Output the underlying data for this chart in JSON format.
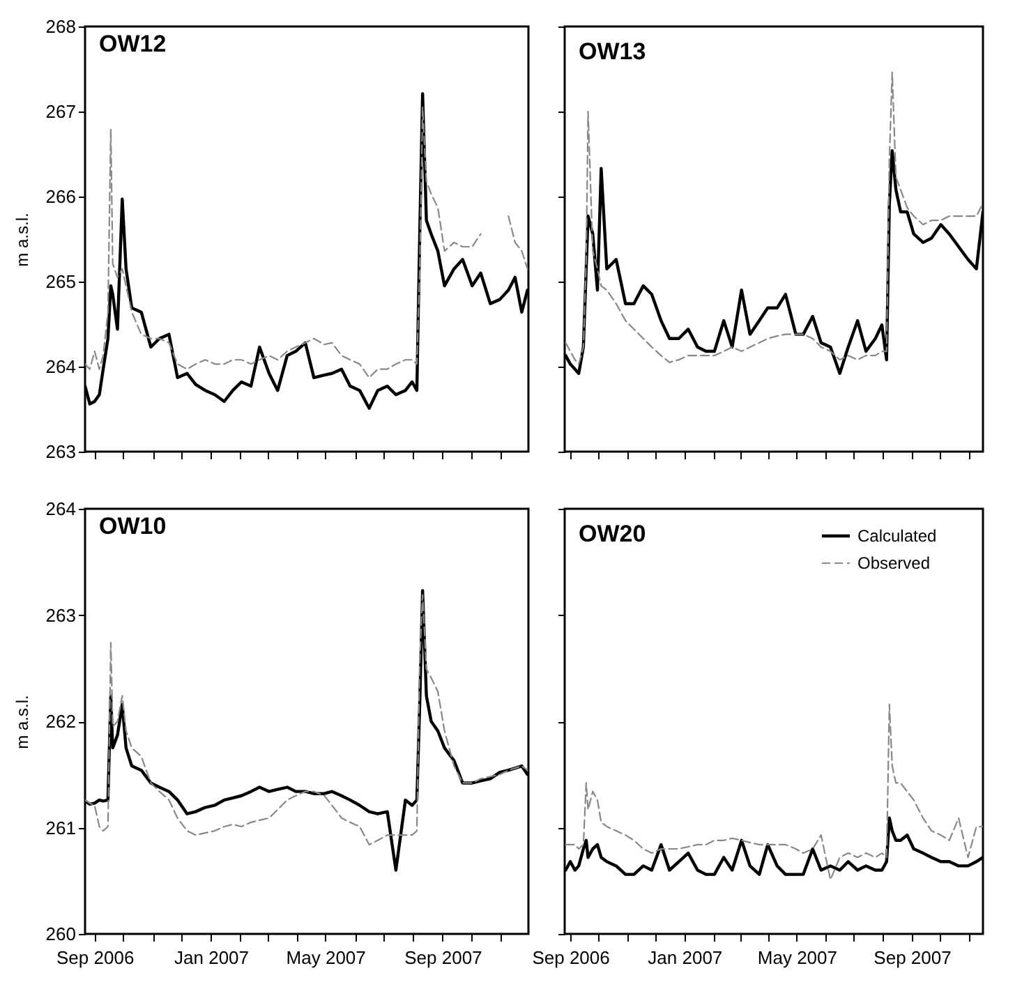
{
  "chart_data": [
    {
      "type": "line",
      "title": "OW12",
      "ylabel": "m a.s.l.",
      "tick_labels": "y",
      "legend": false,
      "xlim": [
        "2006-08-22",
        "2007-11-30"
      ],
      "ylim": [
        263,
        268
      ],
      "yticks": [
        263,
        264,
        265,
        266,
        267,
        268
      ],
      "xticks": [
        {
          "value": "2006-09-01",
          "label": null
        },
        {
          "value": "2006-10-01",
          "label": null
        },
        {
          "value": "2006-11-01",
          "label": null
        },
        {
          "value": "2006-12-01",
          "label": null
        },
        {
          "value": "2007-01-01",
          "label": null
        },
        {
          "value": "2007-02-01",
          "label": null
        },
        {
          "value": "2007-03-01",
          "label": null
        },
        {
          "value": "2007-04-01",
          "label": null
        },
        {
          "value": "2007-05-01",
          "label": null
        },
        {
          "value": "2007-06-01",
          "label": null
        },
        {
          "value": "2007-07-01",
          "label": null
        },
        {
          "value": "2007-08-01",
          "label": null
        },
        {
          "value": "2007-09-01",
          "label": null
        },
        {
          "value": "2007-10-01",
          "label": null
        },
        {
          "value": "2007-11-01",
          "label": null
        }
      ],
      "x": [
        "2006-08-22",
        "2006-08-27",
        "2006-09-01",
        "2006-09-06",
        "2006-09-10",
        "2006-09-15",
        "2006-09-18",
        "2006-09-20",
        "2006-09-25",
        "2006-09-30",
        "2006-10-04",
        "2006-10-10",
        "2006-10-20",
        "2006-10-30",
        "2006-11-08",
        "2006-11-18",
        "2006-11-27",
        "2006-12-07",
        "2006-12-16",
        "2006-12-26",
        "2007-01-05",
        "2007-01-15",
        "2007-01-24",
        "2007-02-02",
        "2007-02-12",
        "2007-02-21",
        "2007-03-03",
        "2007-03-12",
        "2007-03-22",
        "2007-03-31",
        "2007-04-10",
        "2007-04-19",
        "2007-04-30",
        "2007-05-08",
        "2007-05-18",
        "2007-05-27",
        "2007-06-06",
        "2007-06-16",
        "2007-06-25",
        "2007-07-05",
        "2007-07-14",
        "2007-07-24",
        "2007-07-31",
        "2007-08-05",
        "2007-08-08",
        "2007-08-11",
        "2007-08-15",
        "2007-08-20",
        "2007-08-27",
        "2007-09-03",
        "2007-09-13",
        "2007-09-22",
        "2007-10-02",
        "2007-10-11",
        "2007-10-21",
        "2007-10-31",
        "2007-11-09",
        "2007-11-16",
        "2007-11-23",
        "2007-11-29"
      ],
      "series": [
        {
          "color": "#000000",
          "line_style": "solid",
          "values": [
            263.77,
            263.56,
            263.59,
            263.67,
            263.97,
            264.33,
            264.95,
            264.85,
            264.44,
            265.97,
            265.15,
            264.69,
            264.64,
            264.23,
            264.33,
            264.38,
            263.87,
            263.92,
            263.79,
            263.72,
            263.67,
            263.59,
            263.72,
            263.82,
            263.77,
            264.23,
            263.92,
            263.72,
            264.13,
            264.18,
            264.28,
            263.87,
            263.9,
            263.92,
            263.97,
            263.77,
            263.72,
            263.51,
            263.72,
            263.77,
            263.67,
            263.72,
            263.82,
            263.72,
            265.56,
            267.21,
            265.72,
            265.56,
            265.36,
            264.95,
            265.15,
            265.26,
            264.95,
            265.1,
            264.74,
            264.79,
            264.9,
            265.05,
            264.64,
            264.9
          ]
        },
        {
          "color": "#888888",
          "line_style": "dashed",
          "values": [
            264.03,
            263.97,
            264.18,
            263.97,
            264.13,
            264.64,
            266.79,
            265.21,
            265.05,
            265.15,
            264.95,
            264.64,
            264.38,
            264.33,
            264.33,
            264.28,
            264.03,
            263.97,
            264.03,
            264.08,
            264.03,
            264.03,
            264.08,
            264.08,
            264.03,
            264.08,
            264.13,
            264.08,
            264.18,
            264.23,
            264.28,
            264.33,
            264.26,
            264.28,
            264.13,
            264.08,
            264.03,
            263.87,
            263.97,
            263.97,
            264.03,
            264.08,
            264.08,
            264.03,
            265.15,
            267.05,
            266.18,
            266.03,
            265.87,
            265.36,
            265.46,
            265.41,
            265.41,
            265.56,
            null,
            null,
            265.77,
            265.46,
            265.36,
            265.15
          ]
        }
      ]
    },
    {
      "type": "line",
      "title": "OW13",
      "tick_labels": false,
      "legend": false,
      "xlim": [
        "2006-08-26",
        "2007-11-16"
      ],
      "ylim": [
        263,
        268
      ],
      "yticks": [
        263,
        264,
        265,
        266,
        267,
        268
      ],
      "xticks": [
        {
          "value": "2006-09-01",
          "label": null
        },
        {
          "value": "2006-10-01",
          "label": null
        },
        {
          "value": "2006-11-01",
          "label": null
        },
        {
          "value": "2006-12-01",
          "label": null
        },
        {
          "value": "2007-01-01",
          "label": null
        },
        {
          "value": "2007-02-01",
          "label": null
        },
        {
          "value": "2007-03-01",
          "label": null
        },
        {
          "value": "2007-04-01",
          "label": null
        },
        {
          "value": "2007-05-01",
          "label": null
        },
        {
          "value": "2007-06-01",
          "label": null
        },
        {
          "value": "2007-07-01",
          "label": null
        },
        {
          "value": "2007-08-01",
          "label": null
        },
        {
          "value": "2007-09-01",
          "label": null
        },
        {
          "value": "2007-10-01",
          "label": null
        },
        {
          "value": "2007-11-01",
          "label": null
        }
      ],
      "x": [
        "2006-08-27",
        "2006-09-01",
        "2006-09-06",
        "2006-09-10",
        "2006-09-15",
        "2006-09-18",
        "2006-09-20",
        "2006-09-25",
        "2006-09-30",
        "2006-10-04",
        "2006-10-10",
        "2006-10-20",
        "2006-10-30",
        "2006-11-08",
        "2006-11-18",
        "2006-11-27",
        "2006-12-07",
        "2006-12-16",
        "2006-12-26",
        "2007-01-05",
        "2007-01-15",
        "2007-01-24",
        "2007-02-02",
        "2007-02-12",
        "2007-02-21",
        "2007-03-03",
        "2007-03-12",
        "2007-03-22",
        "2007-03-31",
        "2007-04-10",
        "2007-04-19",
        "2007-04-30",
        "2007-05-08",
        "2007-05-18",
        "2007-05-27",
        "2007-06-06",
        "2007-06-16",
        "2007-06-25",
        "2007-07-05",
        "2007-07-14",
        "2007-07-24",
        "2007-07-31",
        "2007-08-05",
        "2007-08-08",
        "2007-08-11",
        "2007-08-15",
        "2007-08-20",
        "2007-08-27",
        "2007-09-03",
        "2007-09-13",
        "2007-09-22",
        "2007-10-02",
        "2007-10-11",
        "2007-10-21",
        "2007-10-31",
        "2007-11-09",
        "2007-11-16"
      ],
      "series": [
        {
          "color": "#000000",
          "line_style": "solid",
          "values": [
            264.13,
            264.03,
            263.97,
            263.92,
            264.23,
            265.15,
            265.77,
            265.56,
            264.9,
            266.33,
            265.15,
            265.26,
            264.74,
            264.74,
            264.95,
            264.85,
            264.54,
            264.33,
            264.33,
            264.44,
            264.23,
            264.18,
            264.18,
            264.54,
            264.23,
            264.9,
            264.38,
            264.54,
            264.69,
            264.69,
            264.85,
            264.38,
            264.38,
            264.59,
            264.28,
            264.23,
            263.92,
            264.23,
            264.54,
            264.18,
            264.33,
            264.49,
            264.08,
            265.92,
            266.54,
            266.08,
            265.82,
            265.82,
            265.56,
            265.46,
            265.51,
            265.67,
            265.56,
            265.41,
            265.26,
            265.15,
            265.82
          ]
        },
        {
          "color": "#888888",
          "line_style": "dashed",
          "values": [
            264.28,
            264.18,
            264.08,
            264.03,
            264.23,
            265.26,
            267.0,
            265.36,
            265.15,
            264.95,
            264.9,
            264.74,
            264.54,
            264.44,
            264.33,
            264.23,
            264.13,
            264.05,
            264.08,
            264.13,
            264.13,
            264.13,
            264.13,
            264.18,
            264.23,
            264.18,
            264.23,
            264.28,
            264.33,
            264.36,
            264.38,
            264.38,
            264.38,
            264.33,
            264.23,
            264.18,
            264.08,
            264.13,
            264.08,
            264.13,
            264.13,
            264.18,
            264.18,
            266.44,
            267.46,
            266.23,
            266.08,
            265.87,
            265.77,
            265.67,
            265.72,
            265.72,
            265.77,
            265.77,
            265.77,
            265.77,
            265.92
          ]
        }
      ]
    },
    {
      "type": "line",
      "title": "OW10",
      "ylabel": "m a.s.l.",
      "legend": false,
      "xlim": [
        "2006-08-22",
        "2007-11-30"
      ],
      "ylim": [
        260,
        264
      ],
      "yticks": [
        260,
        261,
        262,
        263,
        264
      ],
      "xticks": [
        {
          "value": "2006-09-01",
          "label": "Sep 2006"
        },
        {
          "value": "2006-10-01",
          "label": null
        },
        {
          "value": "2006-11-01",
          "label": null
        },
        {
          "value": "2006-12-01",
          "label": null
        },
        {
          "value": "2007-01-01",
          "label": "Jan 2007"
        },
        {
          "value": "2007-02-01",
          "label": null
        },
        {
          "value": "2007-03-01",
          "label": null
        },
        {
          "value": "2007-04-01",
          "label": null
        },
        {
          "value": "2007-05-01",
          "label": "May 2007"
        },
        {
          "value": "2007-06-01",
          "label": null
        },
        {
          "value": "2007-07-01",
          "label": null
        },
        {
          "value": "2007-08-01",
          "label": null
        },
        {
          "value": "2007-09-01",
          "label": "Sep 2007"
        },
        {
          "value": "2007-10-01",
          "label": null
        },
        {
          "value": "2007-11-01",
          "label": null
        }
      ],
      "x": [
        "2006-08-22",
        "2006-08-27",
        "2006-09-01",
        "2006-09-06",
        "2006-09-10",
        "2006-09-15",
        "2006-09-18",
        "2006-09-20",
        "2006-09-25",
        "2006-09-30",
        "2006-10-04",
        "2006-10-10",
        "2006-10-20",
        "2006-10-30",
        "2006-11-08",
        "2006-11-18",
        "2006-11-27",
        "2006-12-07",
        "2006-12-16",
        "2006-12-26",
        "2007-01-05",
        "2007-01-15",
        "2007-01-24",
        "2007-02-02",
        "2007-02-12",
        "2007-02-21",
        "2007-03-03",
        "2007-03-12",
        "2007-03-22",
        "2007-03-31",
        "2007-04-10",
        "2007-04-19",
        "2007-04-30",
        "2007-05-08",
        "2007-05-18",
        "2007-05-27",
        "2007-06-06",
        "2007-06-16",
        "2007-06-25",
        "2007-07-05",
        "2007-07-14",
        "2007-07-24",
        "2007-07-31",
        "2007-08-05",
        "2007-08-08",
        "2007-08-11",
        "2007-08-15",
        "2007-08-20",
        "2007-08-27",
        "2007-09-03",
        "2007-09-13",
        "2007-09-22",
        "2007-10-02",
        "2007-10-11",
        "2007-10-21",
        "2007-10-31",
        "2007-11-09",
        "2007-11-16",
        "2007-11-23",
        "2007-11-29"
      ],
      "series": [
        {
          "color": "#000000",
          "line_style": "solid",
          "values": [
            261.25,
            261.22,
            261.23,
            261.26,
            261.25,
            261.26,
            262.24,
            261.75,
            261.87,
            262.16,
            261.75,
            261.58,
            261.54,
            261.42,
            261.38,
            261.34,
            261.26,
            261.13,
            261.15,
            261.19,
            261.21,
            261.26,
            261.28,
            261.3,
            261.34,
            261.38,
            261.34,
            261.36,
            261.38,
            261.34,
            261.34,
            261.32,
            261.32,
            261.34,
            261.3,
            261.26,
            261.21,
            261.15,
            261.13,
            261.15,
            260.6,
            261.26,
            261.21,
            261.26,
            262.16,
            263.23,
            262.24,
            262.0,
            261.91,
            261.75,
            261.63,
            261.42,
            261.42,
            261.44,
            261.46,
            261.52,
            261.54,
            261.56,
            261.58,
            261.5
          ]
        },
        {
          "color": "#888888",
          "line_style": "dashed",
          "values": [
            261.26,
            261.23,
            261.21,
            261.01,
            260.97,
            261.01,
            262.74,
            261.95,
            262.0,
            262.24,
            261.91,
            261.75,
            261.67,
            261.42,
            261.34,
            261.26,
            261.09,
            260.97,
            260.93,
            260.95,
            260.97,
            261.01,
            261.03,
            261.01,
            261.05,
            261.07,
            261.09,
            261.17,
            261.26,
            261.3,
            261.34,
            261.34,
            261.3,
            261.21,
            261.09,
            261.05,
            261.01,
            260.84,
            260.88,
            260.93,
            260.93,
            260.93,
            260.93,
            260.97,
            262.57,
            263.19,
            262.49,
            262.41,
            262.28,
            261.91,
            261.58,
            261.42,
            261.42,
            261.46,
            261.48,
            261.5,
            261.54,
            261.56,
            261.58,
            261.54
          ]
        }
      ]
    },
    {
      "type": "line",
      "title": "OW20",
      "tick_labels": "x",
      "legend": "top right",
      "xlim": [
        "2006-08-26",
        "2007-11-16"
      ],
      "ylim": [
        260,
        264
      ],
      "yticks": [
        260,
        261,
        262,
        263,
        264
      ],
      "xticks": [
        {
          "value": "2006-09-01",
          "label": "Sep 2006"
        },
        {
          "value": "2006-10-01",
          "label": null
        },
        {
          "value": "2006-11-01",
          "label": null
        },
        {
          "value": "2006-12-01",
          "label": null
        },
        {
          "value": "2007-01-01",
          "label": "Jan 2007"
        },
        {
          "value": "2007-02-01",
          "label": null
        },
        {
          "value": "2007-03-01",
          "label": null
        },
        {
          "value": "2007-04-01",
          "label": null
        },
        {
          "value": "2007-05-01",
          "label": "May 2007"
        },
        {
          "value": "2007-06-01",
          "label": null
        },
        {
          "value": "2007-07-01",
          "label": null
        },
        {
          "value": "2007-08-01",
          "label": null
        },
        {
          "value": "2007-09-01",
          "label": "Sep 2007"
        },
        {
          "value": "2007-10-01",
          "label": null
        },
        {
          "value": "2007-11-01",
          "label": null
        }
      ],
      "x": [
        "2006-08-27",
        "2006-09-01",
        "2006-09-06",
        "2006-09-10",
        "2006-09-15",
        "2006-09-18",
        "2006-09-20",
        "2006-09-25",
        "2006-09-30",
        "2006-10-04",
        "2006-10-10",
        "2006-10-20",
        "2006-10-30",
        "2006-11-08",
        "2006-11-18",
        "2006-11-27",
        "2006-12-07",
        "2006-12-16",
        "2006-12-26",
        "2007-01-05",
        "2007-01-15",
        "2007-01-24",
        "2007-02-02",
        "2007-02-12",
        "2007-02-21",
        "2007-03-03",
        "2007-03-12",
        "2007-03-22",
        "2007-03-31",
        "2007-04-10",
        "2007-04-19",
        "2007-04-30",
        "2007-05-08",
        "2007-05-18",
        "2007-05-27",
        "2007-06-06",
        "2007-06-16",
        "2007-06-25",
        "2007-07-05",
        "2007-07-14",
        "2007-07-24",
        "2007-07-31",
        "2007-08-05",
        "2007-08-08",
        "2007-08-11",
        "2007-08-15",
        "2007-08-20",
        "2007-08-27",
        "2007-09-03",
        "2007-09-13",
        "2007-09-22",
        "2007-10-02",
        "2007-10-11",
        "2007-10-21",
        "2007-10-31",
        "2007-11-09",
        "2007-11-16"
      ],
      "series": [
        {
          "name": "Calculated",
          "color": "#000000",
          "line_style": "solid",
          "values": [
            260.6,
            260.68,
            260.6,
            260.64,
            260.8,
            260.88,
            260.72,
            260.8,
            260.84,
            260.72,
            260.68,
            260.64,
            260.56,
            260.56,
            260.64,
            260.6,
            260.84,
            260.6,
            260.68,
            260.76,
            260.6,
            260.56,
            260.56,
            260.72,
            260.6,
            260.88,
            260.64,
            260.56,
            260.84,
            260.64,
            260.56,
            260.56,
            260.56,
            260.8,
            260.6,
            260.64,
            260.6,
            260.68,
            260.6,
            260.64,
            260.6,
            260.6,
            260.68,
            261.09,
            260.97,
            260.88,
            260.88,
            260.93,
            260.8,
            260.76,
            260.72,
            260.68,
            260.68,
            260.64,
            260.64,
            260.68,
            260.72
          ]
        },
        {
          "name": "Observed",
          "color": "#888888",
          "line_style": "dashed",
          "values": [
            260.84,
            260.84,
            260.84,
            260.8,
            260.84,
            261.42,
            261.17,
            261.34,
            261.26,
            261.05,
            261.01,
            260.97,
            260.93,
            260.88,
            260.8,
            260.76,
            260.8,
            260.8,
            260.8,
            260.82,
            260.84,
            260.84,
            260.88,
            260.88,
            260.9,
            260.88,
            260.86,
            260.84,
            260.84,
            260.84,
            260.84,
            260.8,
            260.76,
            260.8,
            260.93,
            260.51,
            260.72,
            260.76,
            260.72,
            260.76,
            260.72,
            260.76,
            260.72,
            262.16,
            261.58,
            261.42,
            261.42,
            261.34,
            261.26,
            261.09,
            260.97,
            260.93,
            260.88,
            261.09,
            260.72,
            261.01,
            261.01
          ]
        }
      ]
    }
  ]
}
